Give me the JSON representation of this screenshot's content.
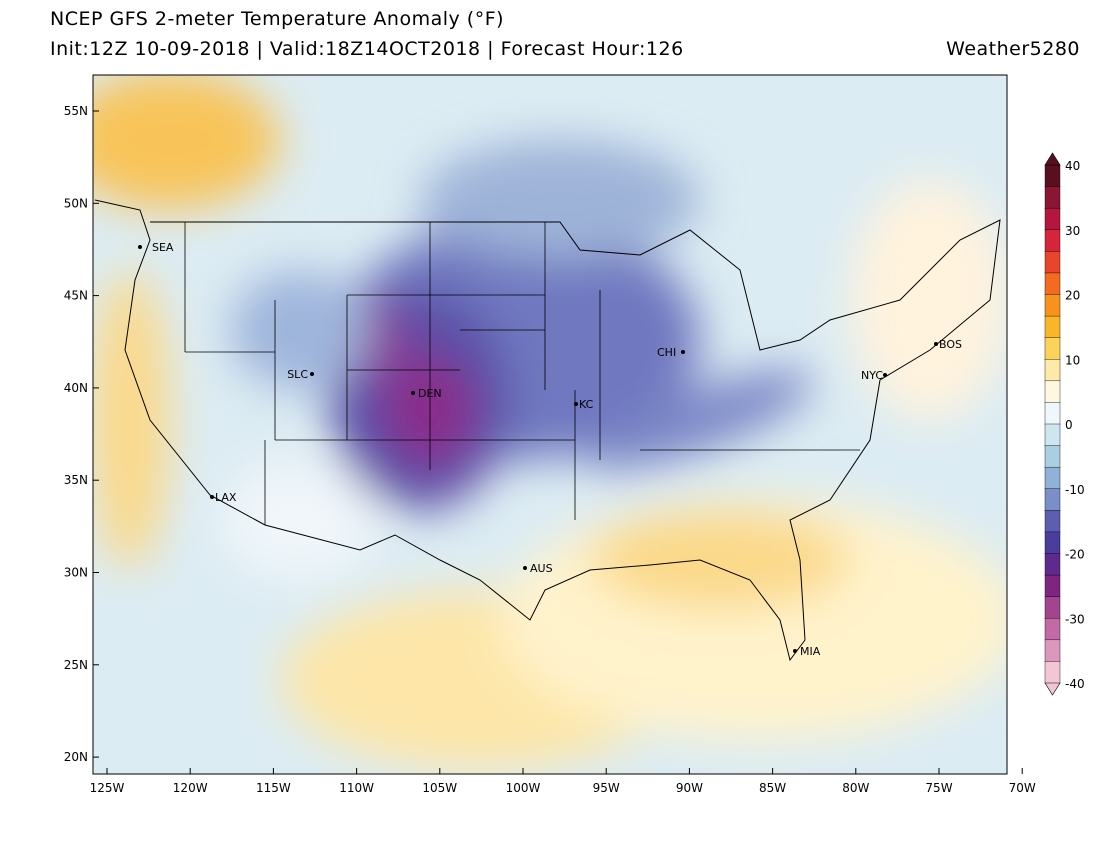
{
  "header": {
    "title": "NCEP GFS 2-meter Temperature Anomaly (°F)",
    "subtitle": "Init:12Z 10-09-2018 | Valid:18Z14OCT2018 | Forecast Hour:126",
    "brand": "Weather5280"
  },
  "map": {
    "lat_ticks": [
      "55N",
      "50N",
      "45N",
      "40N",
      "35N",
      "30N",
      "25N",
      "20N"
    ],
    "lon_ticks": [
      "125W",
      "120W",
      "115W",
      "110W",
      "105W",
      "100W",
      "95W",
      "90W",
      "85W",
      "80W",
      "75W",
      "70W"
    ],
    "cities": [
      "SEA",
      "SLC",
      "DEN",
      "KC",
      "CHI",
      "NYC",
      "BOS",
      "LAX",
      "AUS",
      "MIA"
    ]
  },
  "colorbar": {
    "ticks": [
      40,
      30,
      20,
      10,
      0,
      -10,
      -20,
      -30,
      -40
    ],
    "colors": [
      "#5a0f1e",
      "#8a1535",
      "#b5163f",
      "#d6243a",
      "#e8452c",
      "#f26b1e",
      "#f7931c",
      "#f8b628",
      "#fbd35a",
      "#fde9a8",
      "#fff8e0",
      "#eef7fb",
      "#cfe5ef",
      "#aacfe2",
      "#8fb2d6",
      "#7a8fc8",
      "#5c5fb0",
      "#4a3d9c",
      "#5f2a8e",
      "#80257f",
      "#a3448f",
      "#c26aa5",
      "#dc97bd",
      "#f3c6d6"
    ]
  }
}
